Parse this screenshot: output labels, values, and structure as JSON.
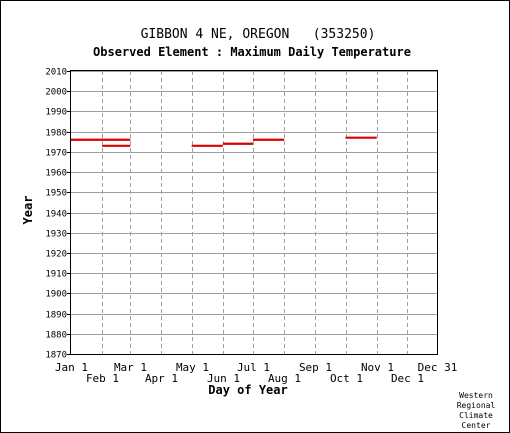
{
  "chart_data": {
    "type": "line",
    "title": "GIBBON 4 NE, OREGON   (353250)",
    "subtitle": "Observed Element : Maximum Daily Temperature",
    "xlabel": "Day of Year",
    "ylabel": "Year",
    "ylim": [
      1870,
      2010
    ],
    "y_ticks": [
      2010,
      2000,
      1990,
      1980,
      1970,
      1960,
      1950,
      1940,
      1930,
      1920,
      1910,
      1900,
      1890,
      1880,
      1870
    ],
    "xlim": [
      1,
      365
    ],
    "x_ticks": [
      {
        "label": "Jan 1",
        "day": 1,
        "row": "top"
      },
      {
        "label": "Feb 1",
        "day": 32,
        "row": "bottom"
      },
      {
        "label": "Mar 1",
        "day": 60,
        "row": "top"
      },
      {
        "label": "Apr 1",
        "day": 91,
        "row": "bottom"
      },
      {
        "label": "May 1",
        "day": 121,
        "row": "top"
      },
      {
        "label": "Jun 1",
        "day": 152,
        "row": "bottom"
      },
      {
        "label": "Jul 1",
        "day": 182,
        "row": "top"
      },
      {
        "label": "Aug 1",
        "day": 213,
        "row": "bottom"
      },
      {
        "label": "Sep 1",
        "day": 244,
        "row": "top"
      },
      {
        "label": "Oct 1",
        "day": 274,
        "row": "bottom"
      },
      {
        "label": "Nov 1",
        "day": 305,
        "row": "top"
      },
      {
        "label": "Dec 1",
        "day": 335,
        "row": "bottom"
      },
      {
        "label": "Dec 31",
        "day": 365,
        "row": "top"
      }
    ],
    "grid": true,
    "series_color": "#dd0000",
    "segments": [
      {
        "year": 1976,
        "start_day": 1,
        "end_day": 60
      },
      {
        "year": 1973,
        "start_day": 32,
        "end_day": 60
      },
      {
        "year": 1973,
        "start_day": 121,
        "end_day": 152
      },
      {
        "year": 1974,
        "start_day": 152,
        "end_day": 182
      },
      {
        "year": 1976,
        "start_day": 182,
        "end_day": 213
      },
      {
        "year": 1977,
        "start_day": 274,
        "end_day": 305
      }
    ]
  },
  "credit": [
    "Western",
    "Regional",
    "Climate",
    "Center"
  ]
}
